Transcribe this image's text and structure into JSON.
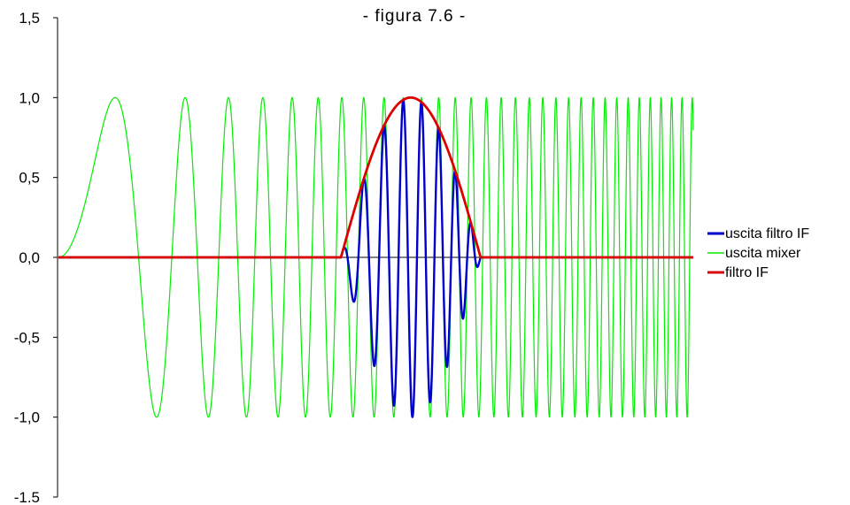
{
  "chart_data": {
    "type": "line",
    "title": "- figura 7.6 -",
    "xlabel": "",
    "ylabel": "",
    "ylim": [
      -1.5,
      1.5
    ],
    "y_ticks": [
      {
        "value": 1.5,
        "label": "1,5"
      },
      {
        "value": 1.0,
        "label": "1,0"
      },
      {
        "value": 0.5,
        "label": "0,5"
      },
      {
        "value": 0.0,
        "label": "0,0"
      },
      {
        "value": -0.5,
        "label": "-0,5"
      },
      {
        "value": -1.0,
        "label": "-1,0"
      },
      {
        "value": -1.5,
        "label": "-1.5"
      }
    ],
    "x_range": [
      0,
      1
    ],
    "x_ticks": [],
    "grid": false,
    "legend_position": "right",
    "series": [
      {
        "name": "uscita filtro IF",
        "color": "#0000cc",
        "kind": "product",
        "description_of_data": "mixer output multiplied by IF filter window"
      },
      {
        "name": "uscita mixer",
        "color": "#00ee00",
        "kind": "chirp",
        "amplitude": 1.0,
        "phase_scale": 197
      },
      {
        "name": "filtro IF",
        "color": "#dd0000",
        "kind": "window",
        "start": 0.445,
        "end": 0.665,
        "peak": 1.0
      }
    ]
  }
}
